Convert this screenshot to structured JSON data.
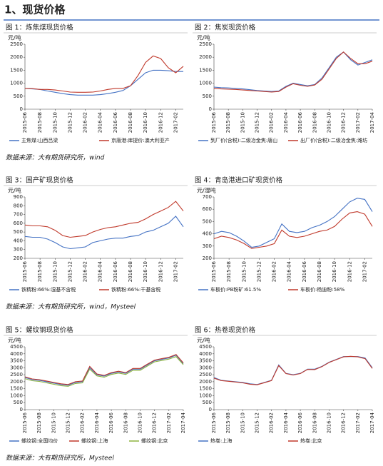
{
  "heading": "1、现货价格",
  "sources": [
    "数据来源：大有期货研究所，wind",
    "数据来源：大有期货研究所，wind，Mysteel",
    "数据来源：大有期货研究所，Mysteel"
  ],
  "chart_data": [
    {
      "type": "line",
      "title": "图 1：炼焦煤现货价格",
      "unit": "元/吨",
      "categories": [
        "2015-06",
        null,
        "2015-08",
        null,
        "2015-10",
        null,
        "2015-12",
        null,
        "2016-02",
        null,
        "2016-04",
        null,
        "2016-06",
        null,
        "2016-08",
        null,
        "2016-10",
        null,
        "2016-12",
        null,
        "2017-02",
        null
      ],
      "ylim": [
        0,
        2500
      ],
      "yticks": [
        0,
        500,
        1000,
        1500,
        2000,
        2500
      ],
      "series": [
        {
          "name": "主焦煤:山西吕梁",
          "color": "#4472c4",
          "values": [
            800,
            780,
            760,
            700,
            650,
            600,
            560,
            540,
            540,
            540,
            560,
            600,
            650,
            720,
            900,
            1150,
            1400,
            1500,
            1500,
            1480,
            1450,
            1450
          ]
        },
        {
          "name": "京唐港:库提价:澳大利亚产",
          "color": "#c0392b",
          "values": [
            800,
            790,
            760,
            760,
            740,
            700,
            660,
            650,
            650,
            660,
            700,
            760,
            800,
            800,
            900,
            1300,
            1800,
            2050,
            1950,
            1600,
            1400,
            1650
          ]
        }
      ]
    },
    {
      "type": "line",
      "title": "图 2：焦炭现货价格",
      "unit": "元/吨",
      "categories": [
        "2015-06",
        null,
        "2015-08",
        null,
        "2015-10",
        null,
        "2015-12",
        null,
        "2016-02",
        null,
        "2016-04",
        null,
        "2016-06",
        null,
        "2016-08",
        null,
        "2016-10",
        null,
        "2016-12",
        null,
        "2017-02",
        null,
        "2017-04"
      ],
      "ylim": [
        0,
        2500
      ],
      "yticks": [
        0,
        500,
        1000,
        1500,
        2000,
        2500
      ],
      "series": [
        {
          "name": "到厂价(含税):二级冶金焦:唐山",
          "color": "#4472c4",
          "values": [
            850,
            830,
            820,
            800,
            780,
            750,
            720,
            700,
            680,
            700,
            880,
            1000,
            950,
            900,
            950,
            1200,
            1600,
            2000,
            2200,
            1900,
            1700,
            1800,
            1900
          ]
        },
        {
          "name": "出厂价(含税):二级冶金焦:潍坊",
          "color": "#c0392b",
          "values": [
            800,
            780,
            770,
            760,
            740,
            720,
            700,
            680,
            660,
            680,
            850,
            980,
            920,
            880,
            930,
            1150,
            1550,
            1950,
            2200,
            1950,
            1750,
            1750,
            1850
          ]
        }
      ]
    },
    {
      "type": "line",
      "title": "图 3：国产矿现货价格",
      "unit": "元/吨",
      "categories": [
        "2015-06",
        null,
        "2015-08",
        null,
        "2015-10",
        null,
        "2015-12",
        null,
        "2016-02",
        null,
        "2016-04",
        null,
        "2016-06",
        null,
        "2016-08",
        null,
        "2016-10",
        null,
        "2016-12",
        null,
        "2017-02",
        null
      ],
      "ylim": [
        200,
        900
      ],
      "yticks": [
        200,
        300,
        400,
        500,
        600,
        700,
        800,
        900
      ],
      "series": [
        {
          "name": "铁精粉:66%:湿基不含税",
          "color": "#4472c4",
          "values": [
            450,
            440,
            440,
            420,
            380,
            330,
            310,
            320,
            330,
            380,
            400,
            420,
            430,
            430,
            450,
            460,
            500,
            520,
            560,
            600,
            680,
            560
          ]
        },
        {
          "name": "铁精粉:66%:干基含税",
          "color": "#c0392b",
          "values": [
            580,
            570,
            570,
            560,
            520,
            460,
            440,
            450,
            460,
            500,
            530,
            550,
            560,
            580,
            600,
            610,
            650,
            700,
            740,
            780,
            850,
            740
          ]
        }
      ]
    },
    {
      "type": "line",
      "title": "图 4：青岛港进口矿现货价格",
      "unit": "元/湿吨",
      "categories": [
        "2015-06",
        null,
        "2015-08",
        null,
        "2015-10",
        null,
        "2015-12",
        null,
        "2016-02",
        null,
        "2016-04",
        null,
        "2016-06",
        null,
        "2016-08",
        null,
        "2016-10",
        null,
        "2016-12",
        null,
        "2017-02",
        null
      ],
      "ylim": [
        200,
        700
      ],
      "yticks": [
        200,
        300,
        400,
        500,
        600,
        700
      ],
      "series": [
        {
          "name": "车板价:PB粉矿:61.5%",
          "color": "#4472c4",
          "values": [
            400,
            420,
            410,
            380,
            340,
            290,
            300,
            330,
            360,
            480,
            420,
            410,
            420,
            450,
            470,
            500,
            540,
            600,
            660,
            690,
            680,
            580
          ]
        },
        {
          "name": "车板价:杨迪粉:58%",
          "color": "#c0392b",
          "values": [
            360,
            380,
            370,
            350,
            320,
            280,
            290,
            300,
            320,
            430,
            380,
            370,
            380,
            400,
            420,
            430,
            460,
            520,
            570,
            580,
            560,
            460
          ]
        }
      ]
    },
    {
      "type": "line",
      "title": "图 5：螺纹钢现货价格",
      "unit": "元/吨",
      "categories": [
        "2015-06",
        null,
        "2015-08",
        null,
        "2015-10",
        null,
        "2015-12",
        null,
        "2016-02",
        null,
        "2016-04",
        null,
        "2016-06",
        null,
        "2016-08",
        null,
        "2016-10",
        null,
        "2016-12",
        null,
        "2017-02",
        null,
        "2017-04"
      ],
      "ylim": [
        0,
        4500
      ],
      "yticks": [
        0,
        500,
        1000,
        1500,
        2000,
        2500,
        3000,
        3500,
        4000,
        4500
      ],
      "series": [
        {
          "name": "螺纹钢:全国均价",
          "color": "#4472c4",
          "values": [
            2300,
            2150,
            2100,
            2000,
            1900,
            1800,
            1750,
            1950,
            2000,
            3000,
            2500,
            2400,
            2600,
            2700,
            2600,
            2900,
            2900,
            3200,
            3500,
            3600,
            3700,
            3900,
            3300
          ]
        },
        {
          "name": "螺纹钢:上海",
          "color": "#c0392b",
          "values": [
            2350,
            2200,
            2150,
            2050,
            1950,
            1850,
            1800,
            2000,
            2050,
            3100,
            2550,
            2450,
            2650,
            2750,
            2650,
            2950,
            2950,
            3250,
            3550,
            3650,
            3750,
            3950,
            3350
          ]
        },
        {
          "name": "螺纹钢:北京",
          "color": "#8db33f",
          "values": [
            2220,
            2070,
            2020,
            1920,
            1820,
            1720,
            1670,
            1870,
            1920,
            2900,
            2420,
            2320,
            2520,
            2620,
            2520,
            2820,
            2820,
            3120,
            3420,
            3520,
            3620,
            3800,
            3220
          ]
        }
      ]
    },
    {
      "type": "line",
      "title": "图 6：热卷现货价格",
      "unit": "元/吨",
      "categories": [
        "2015-06",
        null,
        "2015-08",
        null,
        "2015-10",
        null,
        "2015-12",
        null,
        "2016-02",
        null,
        "2016-04",
        null,
        "2016-06",
        null,
        "2016-08",
        null,
        "2016-10",
        null,
        "2016-12",
        null,
        "2017-02",
        null,
        "2017-04"
      ],
      "ylim": [
        0,
        4500
      ],
      "yticks": [
        0,
        500,
        1000,
        1500,
        2000,
        2500,
        3000,
        3500,
        4000,
        4500
      ],
      "series": [
        {
          "name": "热卷:上海",
          "color": "#4472c4",
          "values": [
            2300,
            2100,
            2050,
            2000,
            1950,
            1850,
            1800,
            1950,
            2100,
            3200,
            2600,
            2500,
            2600,
            2900,
            2900,
            3100,
            3400,
            3600,
            3800,
            3800,
            3800,
            3700,
            3000
          ]
        },
        {
          "name": "热卷:北京",
          "color": "#c0392b",
          "values": [
            2250,
            2080,
            2030,
            1980,
            1920,
            1820,
            1780,
            1930,
            2080,
            3150,
            2580,
            2480,
            2580,
            2880,
            2870,
            3080,
            3380,
            3580,
            3780,
            3820,
            3780,
            3650,
            2950
          ]
        }
      ]
    }
  ]
}
